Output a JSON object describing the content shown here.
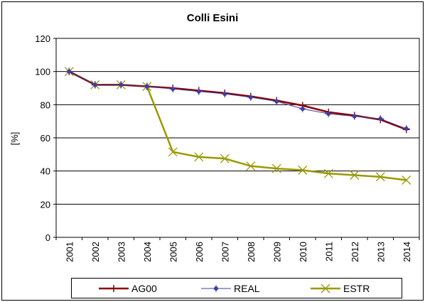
{
  "chart_data": {
    "type": "line",
    "title": "Colli Esini",
    "ylabel": "[%]",
    "xlabel": "",
    "categories": [
      "2001",
      "2002",
      "2003",
      "2004",
      "2005",
      "2006",
      "2007",
      "2008",
      "2009",
      "2010",
      "2011",
      "2012",
      "2013",
      "2014"
    ],
    "ylim": [
      0,
      120
    ],
    "yticks": [
      "0",
      "20",
      "40",
      "60",
      "80",
      "100",
      "120"
    ],
    "grid": true,
    "legend_position": "bottom",
    "series": [
      {
        "name": "AG00",
        "color": "#8B0000",
        "marker": "plus",
        "values": [
          100,
          92,
          92,
          91,
          90,
          88.5,
          87,
          85,
          82.5,
          79.5,
          75.5,
          73.5,
          71,
          65
        ]
      },
      {
        "name": "REAL",
        "color": "#3F3F9F",
        "marker": "star",
        "values": [
          100,
          92,
          92,
          91,
          89.5,
          88,
          86.5,
          84.5,
          82,
          77.5,
          74.5,
          73,
          71.5,
          65.5
        ]
      },
      {
        "name": "ESTR",
        "color": "#999900",
        "marker": "x",
        "values": [
          100,
          92,
          92,
          91,
          51.5,
          48.5,
          47.5,
          43,
          41.5,
          40.5,
          38.5,
          37.5,
          36.5,
          34.5
        ]
      }
    ]
  }
}
